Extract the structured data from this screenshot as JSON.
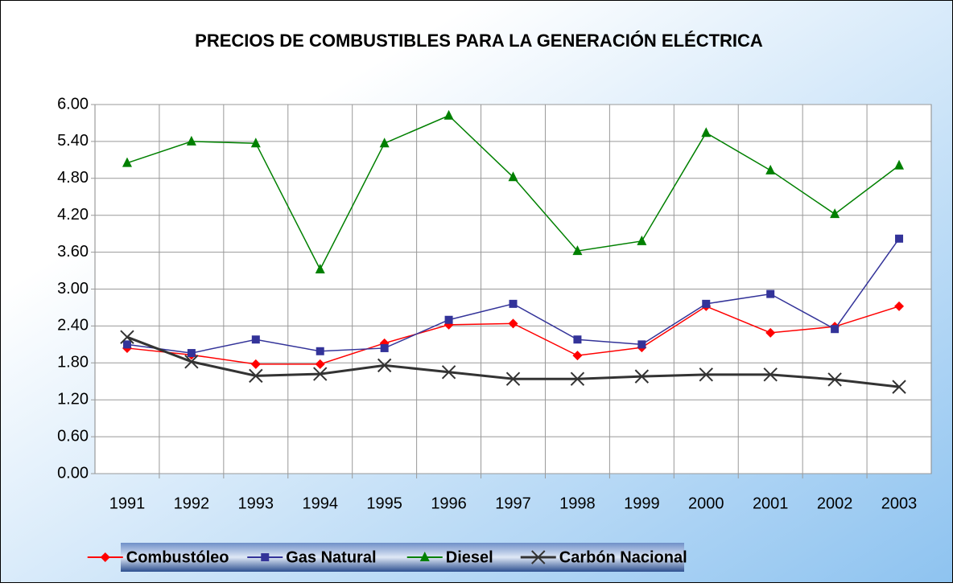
{
  "chart_data": {
    "type": "line",
    "title": "PRECIOS DE COMBUSTIBLES PARA LA GENERACIÓN ELÉCTRICA",
    "categories": [
      "1991",
      "1992",
      "1993",
      "1994",
      "1995",
      "1996",
      "1997",
      "1998",
      "1999",
      "2000",
      "2001",
      "2002",
      "2003"
    ],
    "series": [
      {
        "name": "Combustóleo",
        "color": "#ff0000",
        "marker": "diamond",
        "values": [
          2.04,
          1.93,
          1.78,
          1.78,
          2.12,
          2.42,
          2.44,
          1.92,
          2.05,
          2.72,
          2.29,
          2.39,
          2.72
        ]
      },
      {
        "name": "Gas Natural",
        "color": "#333399",
        "marker": "square",
        "values": [
          2.1,
          1.96,
          2.18,
          1.99,
          2.04,
          2.5,
          2.76,
          2.18,
          2.1,
          2.76,
          2.92,
          2.35,
          3.82
        ]
      },
      {
        "name": "Diesel",
        "color": "#008000",
        "marker": "triangle",
        "values": [
          5.05,
          5.4,
          5.37,
          3.32,
          5.37,
          5.82,
          4.82,
          3.62,
          3.78,
          5.54,
          4.93,
          4.22,
          5.01
        ]
      },
      {
        "name": "Carbón Nacional",
        "color": "#333333",
        "marker": "x",
        "values": [
          2.22,
          1.82,
          1.59,
          1.62,
          1.76,
          1.65,
          1.54,
          1.54,
          1.58,
          1.61,
          1.61,
          1.53,
          1.41
        ]
      }
    ],
    "ylim": [
      0,
      6
    ],
    "yticks": [
      {
        "value": 0,
        "label": "0.00"
      },
      {
        "value": 0.6,
        "label": "0.60"
      },
      {
        "value": 1.2,
        "label": "1.20"
      },
      {
        "value": 1.8,
        "label": "1.80"
      },
      {
        "value": 2.4,
        "label": "2.40"
      },
      {
        "value": 3,
        "label": "3.00"
      },
      {
        "value": 3.6,
        "label": "3.60"
      },
      {
        "value": 4.2,
        "label": "4.20"
      },
      {
        "value": 4.8,
        "label": "4.80"
      },
      {
        "value": 5.4,
        "label": "5.40"
      },
      {
        "value": 6,
        "label": "6.00"
      }
    ],
    "grid": true,
    "legend": "bottom"
  }
}
